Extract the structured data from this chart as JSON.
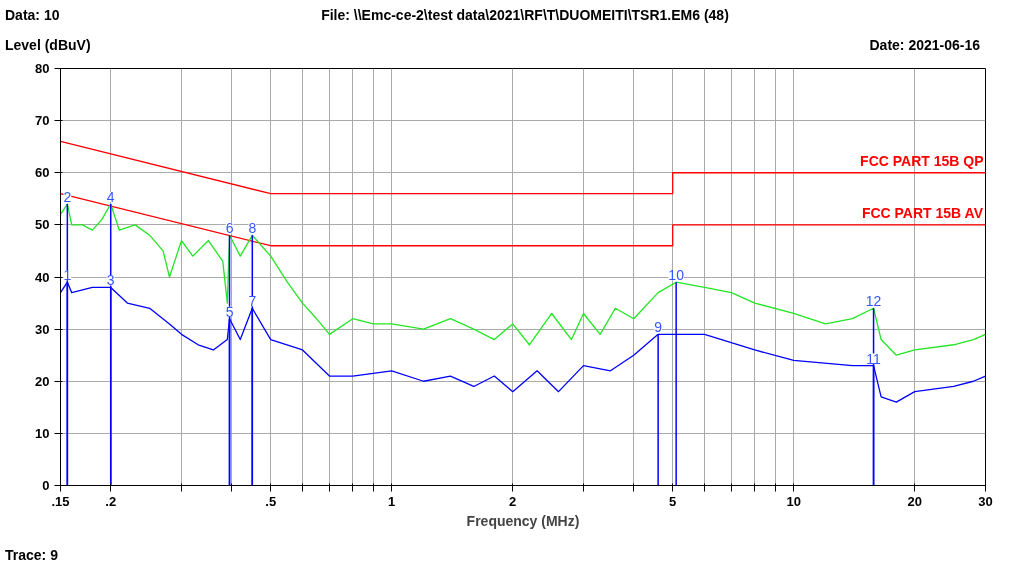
{
  "chart_data": {
    "type": "line",
    "title": "File: \\\\Emc-ce-2\\test data\\2021\\RF\\T\\DUOMEITI\\TSR1.EM6  (48)",
    "xlabel": "Frequency (MHz)",
    "ylabel": "Level (dBuV)",
    "log": "x",
    "grid": true,
    "legend": false,
    "marker": "none",
    "line_style": "solid",
    "xlim": [
      0.15,
      30
    ],
    "ylim": [
      0,
      80
    ],
    "xticks": [
      {
        "value": 0.15,
        "label": ".15"
      },
      {
        "value": 0.2,
        "label": ".2"
      },
      {
        "value": 0.3,
        "label": null
      },
      {
        "value": 0.4,
        "label": null
      },
      {
        "value": 0.5,
        "label": ".5"
      },
      {
        "value": 0.6,
        "label": null
      },
      {
        "value": 0.7,
        "label": null
      },
      {
        "value": 0.8,
        "label": null
      },
      {
        "value": 0.9,
        "label": null
      },
      1,
      2,
      {
        "value": 3,
        "label": null
      },
      {
        "value": 4,
        "label": null
      },
      5,
      {
        "value": 6,
        "label": null
      },
      {
        "value": 7,
        "label": null
      },
      {
        "value": 8,
        "label": null
      },
      {
        "value": 9,
        "label": null
      },
      10,
      20,
      30
    ],
    "yticks": [
      0,
      10,
      20,
      30,
      40,
      50,
      60,
      70,
      80
    ],
    "series": [
      {
        "name": "FCC PART 15B QP",
        "color": "#ff0000",
        "x": [
          0.15,
          0.5,
          5,
          5,
          30
        ],
        "values": [
          66,
          56,
          56,
          60,
          60
        ]
      },
      {
        "name": "FCC PART 15B AV",
        "color": "#ff0000",
        "x": [
          0.15,
          0.5,
          5,
          5,
          30
        ],
        "values": [
          56,
          46,
          46,
          50,
          50
        ]
      },
      {
        "color": "#22e622",
        "x": [
          0.15,
          0.156,
          0.16,
          0.17,
          0.18,
          0.19,
          0.2,
          0.21,
          0.23,
          0.25,
          0.27,
          0.28,
          0.3,
          0.32,
          0.35,
          0.38,
          0.39,
          0.395,
          0.42,
          0.45,
          0.5,
          0.55,
          0.6,
          0.65,
          0.7,
          0.8,
          0.9,
          1.0,
          1.2,
          1.4,
          1.6,
          1.8,
          2.0,
          2.2,
          2.5,
          2.8,
          3.0,
          3.3,
          3.6,
          4.0,
          4.6,
          5.1,
          6,
          7,
          8,
          10,
          12,
          14,
          15.8,
          16.5,
          18,
          20,
          25,
          28,
          30
        ],
        "values": [
          52,
          54,
          50,
          50,
          49,
          51,
          54,
          49,
          50,
          48,
          45,
          40,
          47,
          44,
          47,
          43,
          35,
          48,
          44,
          48,
          44,
          39,
          35,
          32,
          29,
          32,
          31,
          31,
          30,
          32,
          30,
          28,
          31,
          27,
          33,
          28,
          33,
          29,
          34,
          32,
          37,
          39,
          38,
          37,
          35,
          33,
          31,
          32,
          34,
          28,
          25,
          26,
          27,
          28,
          29
        ]
      },
      {
        "color": "#0000ff",
        "x": [
          0.15,
          0.156,
          0.16,
          0.18,
          0.2,
          0.22,
          0.25,
          0.28,
          0.3,
          0.33,
          0.36,
          0.39,
          0.395,
          0.42,
          0.45,
          0.5,
          0.6,
          0.7,
          0.8,
          1.0,
          1.2,
          1.4,
          1.6,
          1.8,
          2.0,
          2.3,
          2.6,
          3.0,
          3.5,
          4.0,
          4.6,
          5.0,
          6,
          8,
          10,
          14,
          15.8,
          16.5,
          18,
          20,
          25,
          28,
          30
        ],
        "values": [
          37,
          39,
          37,
          38,
          38,
          35,
          34,
          31,
          29,
          27,
          26,
          28,
          32,
          28,
          34,
          28,
          26,
          21,
          21,
          22,
          20,
          21,
          19,
          21,
          18,
          22,
          18,
          23,
          22,
          25,
          29,
          29,
          29,
          26,
          24,
          23,
          23,
          17,
          16,
          18,
          19,
          20,
          21
        ]
      }
    ],
    "annotations": [
      "Data: 10",
      "Date: 2021-06-16",
      "Trace: 9",
      {
        "text": "1",
        "x": 0.156,
        "y": 39
      },
      {
        "text": "2",
        "x": 0.156,
        "y": 54
      },
      {
        "text": "3",
        "x": 0.2,
        "y": 38
      },
      {
        "text": "4",
        "x": 0.2,
        "y": 54
      },
      {
        "text": "5",
        "x": 0.395,
        "y": 32
      },
      {
        "text": "6",
        "x": 0.395,
        "y": 48
      },
      {
        "text": "7",
        "x": 0.45,
        "y": 34
      },
      {
        "text": "8",
        "x": 0.45,
        "y": 48
      },
      {
        "text": "9",
        "x": 4.6,
        "y": 29
      },
      {
        "text": "10",
        "x": 5.1,
        "y": 39
      },
      {
        "text": "11",
        "x": 15.8,
        "y": 23
      },
      {
        "text": "12",
        "x": 15.8,
        "y": 34
      }
    ]
  }
}
